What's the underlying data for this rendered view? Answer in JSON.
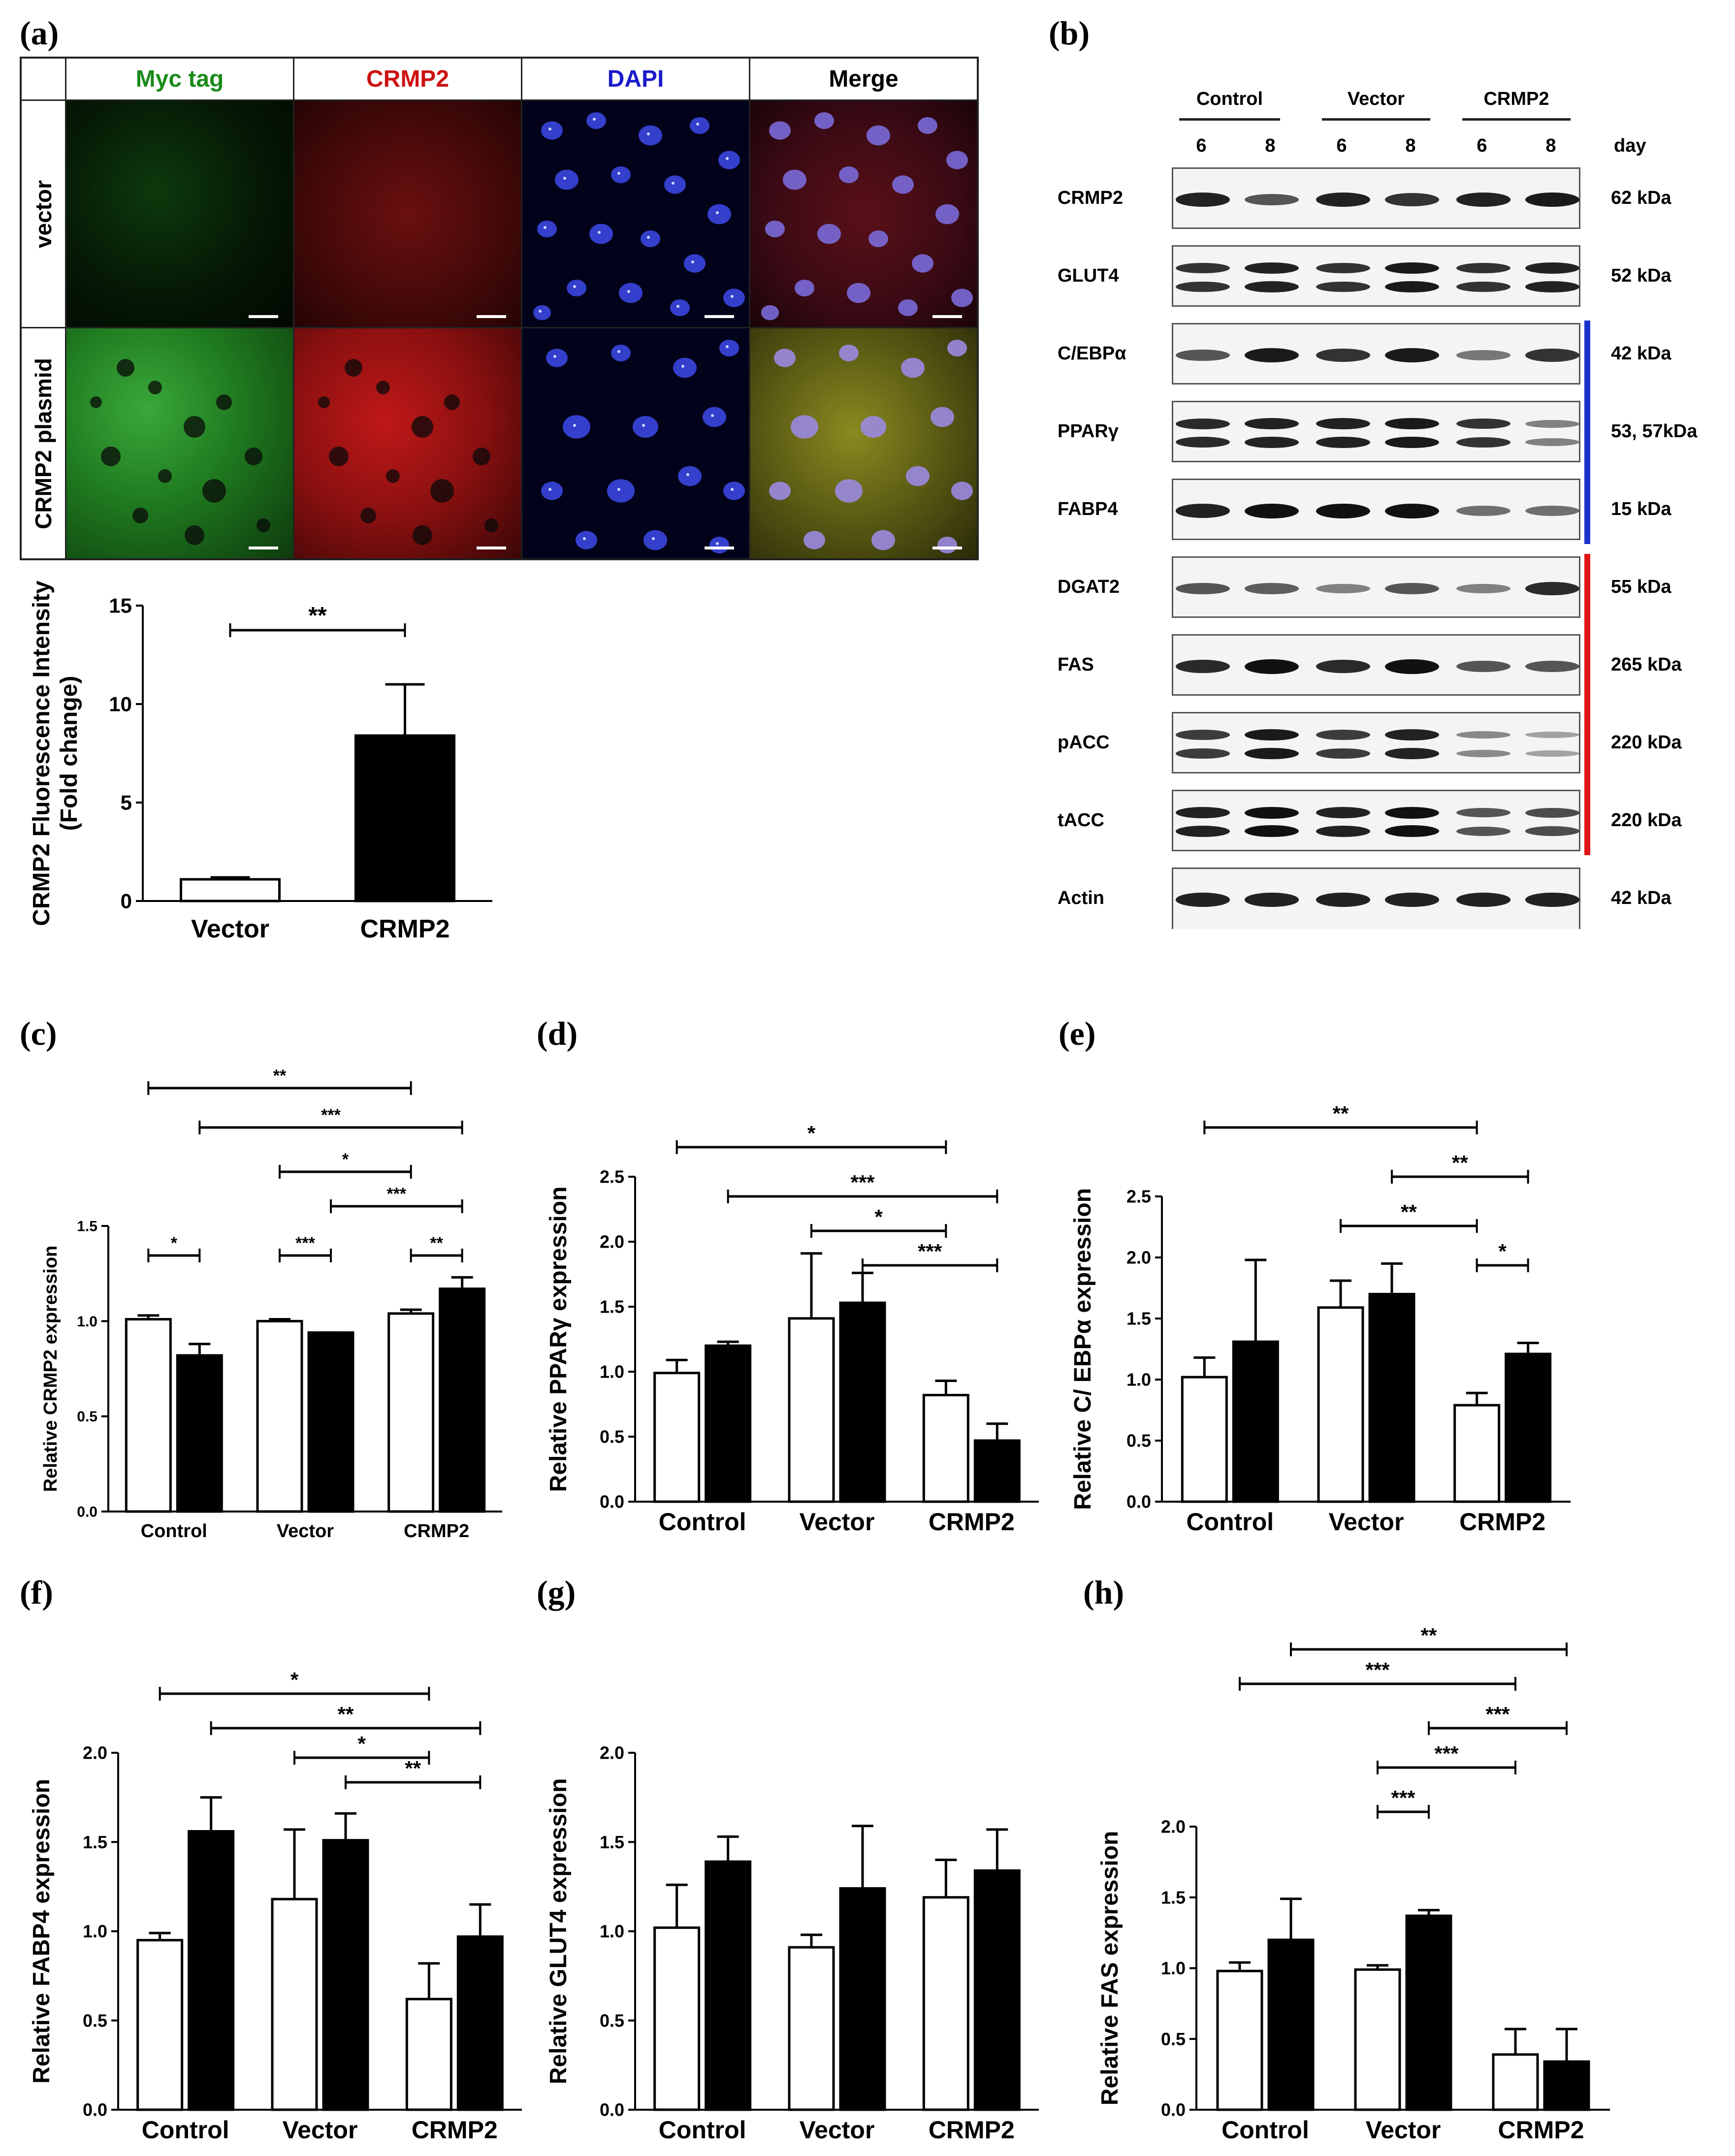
{
  "panel_labels": {
    "a": "(a)",
    "b": "(b)",
    "c": "(c)",
    "d": "(d)",
    "e": "(e)",
    "f": "(f)",
    "g": "(g)",
    "h": "(h)"
  },
  "micro": {
    "columns": [
      {
        "label": "Myc tag",
        "color": "#1a8a1a"
      },
      {
        "label": "CRMP2",
        "color": "#cc1111"
      },
      {
        "label": "DAPI",
        "color": "#1a1acc"
      },
      {
        "label": "Merge",
        "color": "#000000"
      }
    ],
    "rows": [
      "vector",
      "CRMP2 plasmid"
    ]
  },
  "blot": {
    "groups": [
      "Control",
      "Vector",
      "CRMP2"
    ],
    "days": [
      "6",
      "8",
      "6",
      "8",
      "6",
      "8"
    ],
    "day_label": "day",
    "proteins": [
      {
        "name": "CRMP2",
        "kda": "62 kDa",
        "bands": [
          0.9,
          0.6,
          0.9,
          0.8,
          0.9,
          0.95
        ],
        "double": false
      },
      {
        "name": "GLUT4",
        "kda": "52 kDa",
        "bands": [
          0.8,
          0.9,
          0.8,
          0.95,
          0.8,
          0.9
        ],
        "double": true
      },
      {
        "name": "C/EBPα",
        "kda": "42 kDa",
        "bands": [
          0.6,
          0.95,
          0.8,
          0.95,
          0.4,
          0.8
        ],
        "double": false
      },
      {
        "name": "PPARγ",
        "kda": "53, 57kDa",
        "bands": [
          0.85,
          0.9,
          0.9,
          0.95,
          0.8,
          0.35
        ],
        "double": true
      },
      {
        "name": "FABP4",
        "kda": "15 kDa",
        "bands": [
          0.9,
          1.0,
          1.0,
          1.0,
          0.45,
          0.45
        ],
        "double": false
      },
      {
        "name": "DGAT2",
        "kda": "55 kDa",
        "bands": [
          0.6,
          0.55,
          0.35,
          0.6,
          0.35,
          0.85
        ],
        "double": false
      },
      {
        "name": "FAS",
        "kda": "265 kDa",
        "bands": [
          0.85,
          1.0,
          0.85,
          1.0,
          0.6,
          0.6
        ],
        "double": false
      },
      {
        "name": "pACC",
        "kda": "220 kDa",
        "bands": [
          0.75,
          0.95,
          0.75,
          0.9,
          0.3,
          0.15
        ],
        "double": true
      },
      {
        "name": "tACC",
        "kda": "220 kDa",
        "bands": [
          0.9,
          1.0,
          0.9,
          1.0,
          0.6,
          0.65
        ],
        "double": true
      },
      {
        "name": "Actin",
        "kda": "42 kDa",
        "bands": [
          0.9,
          0.9,
          0.9,
          0.9,
          0.9,
          0.9
        ],
        "double": false
      }
    ],
    "blue_bracket_color": "#1a33cc",
    "red_bracket_color": "#e01515"
  },
  "chart_data": [
    {
      "id": "a",
      "type": "bar",
      "categories": [
        "Vector",
        "CRMP2"
      ],
      "values": [
        1.1,
        8.4
      ],
      "errors": [
        0.1,
        2.6
      ],
      "fills": [
        "#ffffff",
        "#000000"
      ],
      "ylabel_lines": [
        "CRMP2 Fluorescence Intensity",
        "(Fold change)"
      ],
      "ylim": [
        0,
        15
      ],
      "yticks": [
        "0",
        "5",
        "10",
        "15"
      ],
      "sig": [
        {
          "from": 0,
          "to": 1,
          "label": "**"
        }
      ]
    },
    {
      "id": "c",
      "type": "bar",
      "categories": [
        "Control",
        "Vector",
        "CRMP2"
      ],
      "series": [
        {
          "values": [
            1.01,
            1.0,
            1.04
          ],
          "errors": [
            0.02,
            0.01,
            0.02
          ],
          "fill": "#ffffff"
        },
        {
          "values": [
            0.82,
            0.94,
            1.17
          ],
          "errors": [
            0.06,
            0.0,
            0.06
          ],
          "fill": "#000000"
        }
      ],
      "ylabel_lines": [
        "Relative CRMP2 expression"
      ],
      "ylim": [
        0,
        1.5
      ],
      "yticks": [
        "0.0",
        "0.5",
        "1.0",
        "1.5"
      ],
      "sig": [
        {
          "from": [
            0,
            0
          ],
          "to": [
            2,
            0
          ],
          "label": "**",
          "level": "**"
        },
        {
          "from": [
            0,
            1
          ],
          "to": [
            2,
            1
          ],
          "label": "***"
        },
        {
          "from": [
            1,
            0
          ],
          "to": [
            2,
            0
          ],
          "label": "*"
        },
        {
          "from": [
            1,
            1
          ],
          "to": [
            2,
            1
          ],
          "label": "***"
        },
        {
          "from": [
            0,
            0
          ],
          "to": [
            0,
            1
          ],
          "label": "*"
        },
        {
          "from": [
            1,
            0
          ],
          "to": [
            1,
            1
          ],
          "label": "***"
        },
        {
          "from": [
            2,
            0
          ],
          "to": [
            2,
            1
          ],
          "label": "**"
        }
      ]
    },
    {
      "id": "d",
      "type": "bar",
      "categories": [
        "Control",
        "Vector",
        "CRMP2"
      ],
      "series": [
        {
          "values": [
            0.99,
            1.41,
            0.82
          ],
          "errors": [
            0.1,
            0.5,
            0.11
          ],
          "fill": "#ffffff"
        },
        {
          "values": [
            1.2,
            1.53,
            0.47
          ],
          "errors": [
            0.03,
            0.23,
            0.13
          ],
          "fill": "#000000"
        }
      ],
      "ylabel_lines": [
        "Relative PPARγ expression"
      ],
      "ylim": [
        0,
        2.5
      ],
      "yticks": [
        "0.0",
        "0.5",
        "1.0",
        "1.5",
        "2.0",
        "2.5"
      ],
      "sig": [
        {
          "from": [
            0,
            0
          ],
          "to": [
            2,
            0
          ],
          "label": "*"
        },
        {
          "from": [
            0,
            1
          ],
          "to": [
            2,
            1
          ],
          "label": "***"
        },
        {
          "from": [
            1,
            0
          ],
          "to": [
            2,
            0
          ],
          "label": "*"
        },
        {
          "from": [
            1,
            1
          ],
          "to": [
            2,
            1
          ],
          "label": "***"
        }
      ]
    },
    {
      "id": "e",
      "type": "bar",
      "categories": [
        "Control",
        "Vector",
        "CRMP2"
      ],
      "series": [
        {
          "values": [
            1.02,
            1.59,
            0.79
          ],
          "errors": [
            0.16,
            0.22,
            0.1
          ],
          "fill": "#ffffff"
        },
        {
          "values": [
            1.31,
            1.7,
            1.21
          ],
          "errors": [
            0.67,
            0.25,
            0.09
          ],
          "fill": "#000000"
        }
      ],
      "ylabel_lines": [
        "Relative C/ EBPα expression"
      ],
      "ylim": [
        0,
        2.5
      ],
      "yticks": [
        "0.0",
        "0.5",
        "1.0",
        "1.5",
        "2.0",
        "2.5"
      ],
      "sig": [
        {
          "from": [
            0,
            0
          ],
          "to": [
            2,
            0
          ],
          "label": "**"
        },
        {
          "from": [
            1,
            1
          ],
          "to": [
            2,
            1
          ],
          "label": "**"
        },
        {
          "from": [
            1,
            0
          ],
          "to": [
            2,
            0
          ],
          "label": "**"
        },
        {
          "from": [
            2,
            0
          ],
          "to": [
            2,
            1
          ],
          "label": "*"
        }
      ]
    },
    {
      "id": "f",
      "type": "bar",
      "categories": [
        "Control",
        "Vector",
        "CRMP2"
      ],
      "series": [
        {
          "values": [
            0.95,
            1.18,
            0.62
          ],
          "errors": [
            0.04,
            0.39,
            0.2
          ],
          "fill": "#ffffff"
        },
        {
          "values": [
            1.56,
            1.51,
            0.97
          ],
          "errors": [
            0.19,
            0.15,
            0.18
          ],
          "fill": "#000000"
        }
      ],
      "ylabel_lines": [
        "Relative FABP4 expression"
      ],
      "ylim": [
        0,
        2.0
      ],
      "yticks": [
        "0.0",
        "0.5",
        "1.0",
        "1.5",
        "2.0"
      ],
      "sig": [
        {
          "from": [
            0,
            0
          ],
          "to": [
            2,
            0
          ],
          "label": "*"
        },
        {
          "from": [
            0,
            1
          ],
          "to": [
            2,
            1
          ],
          "label": "**"
        },
        {
          "from": [
            1,
            0
          ],
          "to": [
            2,
            0
          ],
          "label": "*"
        },
        {
          "from": [
            1,
            1
          ],
          "to": [
            2,
            1
          ],
          "label": "**"
        }
      ]
    },
    {
      "id": "g",
      "type": "bar",
      "categories": [
        "Control",
        "Vector",
        "CRMP2"
      ],
      "series": [
        {
          "values": [
            1.02,
            0.91,
            1.19
          ],
          "errors": [
            0.24,
            0.07,
            0.21
          ],
          "fill": "#ffffff"
        },
        {
          "values": [
            1.39,
            1.24,
            1.34
          ],
          "errors": [
            0.14,
            0.35,
            0.23
          ],
          "fill": "#000000"
        }
      ],
      "ylabel_lines": [
        "Relative GLUT4 expression"
      ],
      "ylim": [
        0,
        2.0
      ],
      "yticks": [
        "0.0",
        "0.5",
        "1.0",
        "1.5",
        "2.0"
      ],
      "sig": []
    },
    {
      "id": "h",
      "type": "bar",
      "categories": [
        "Control",
        "Vector",
        "CRMP2"
      ],
      "series": [
        {
          "values": [
            0.98,
            0.99,
            0.39
          ],
          "errors": [
            0.06,
            0.03,
            0.18
          ],
          "fill": "#ffffff"
        },
        {
          "values": [
            1.2,
            1.37,
            0.34
          ],
          "errors": [
            0.29,
            0.04,
            0.23
          ],
          "fill": "#000000"
        }
      ],
      "ylabel_lines": [
        "Relative FAS expression"
      ],
      "ylim": [
        0,
        2.0
      ],
      "yticks": [
        "0.0",
        "0.5",
        "1.0",
        "1.5",
        "2.0"
      ],
      "sig": [
        {
          "from": [
            0,
            1
          ],
          "to": [
            2,
            1
          ],
          "label": "**"
        },
        {
          "from": [
            0,
            0
          ],
          "to": [
            2,
            0
          ],
          "label": "***"
        },
        {
          "from": [
            1,
            1
          ],
          "to": [
            2,
            1
          ],
          "label": "***"
        },
        {
          "from": [
            1,
            0
          ],
          "to": [
            2,
            0
          ],
          "label": "***"
        },
        {
          "from": [
            1,
            0
          ],
          "to": [
            1,
            1
          ],
          "label": "***"
        }
      ]
    }
  ]
}
